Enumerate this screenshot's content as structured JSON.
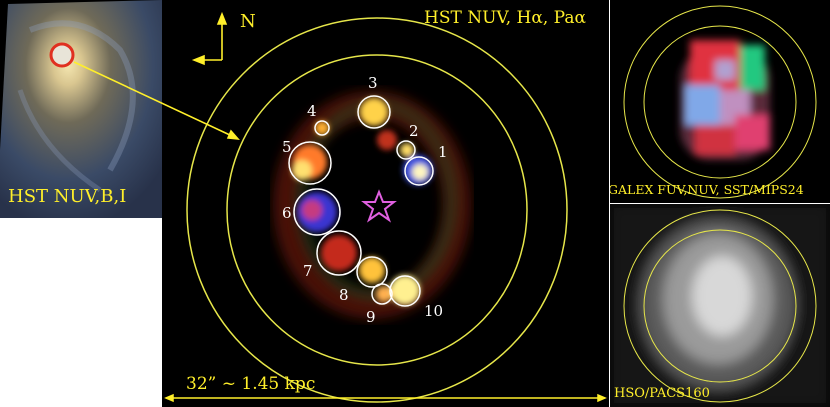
{
  "inset": {
    "label": "HST NUV,B,I"
  },
  "main": {
    "label": "HST NUV, Hα, Paα",
    "compass_label": "N",
    "scale_label": "32” ~ 1.45 kpc",
    "regions": [
      "1",
      "2",
      "3",
      "4",
      "5",
      "6",
      "7",
      "8",
      "9",
      "10"
    ]
  },
  "top_right": {
    "label": "GALEX FUV,NUV, SST/MIPS24"
  },
  "bottom_right": {
    "label": "HSO/PACS160"
  },
  "colors": {
    "annotation": "#ffef2a",
    "aperture": "#e6e64a",
    "star": "#e060e0",
    "highlight": "#e03020"
  }
}
